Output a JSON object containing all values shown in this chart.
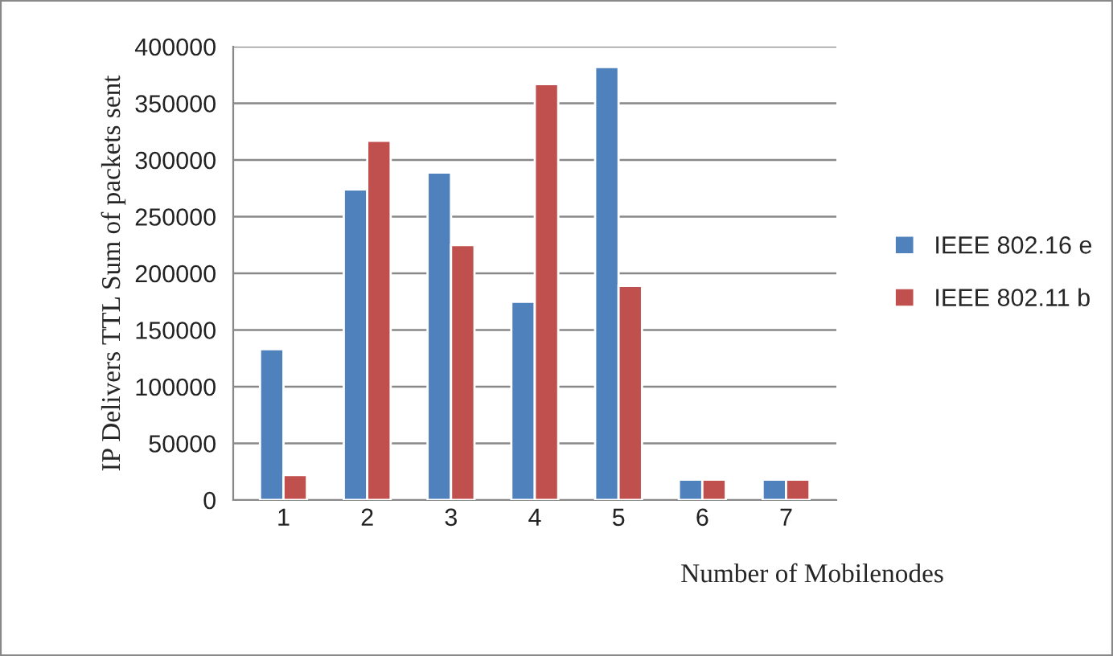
{
  "chart_data": {
    "type": "bar",
    "xlabel": "Number of Mobilenodes",
    "ylabel": "IP Delivers TTL Sum of packets sent",
    "categories": [
      "1",
      "2",
      "3",
      "4",
      "5",
      "6",
      "7"
    ],
    "series": [
      {
        "name": "IEEE 802.16 e",
        "color": "#4f81bd",
        "values": [
          133000,
          274000,
          289000,
          175000,
          382000,
          18000,
          18000
        ]
      },
      {
        "name": "IEEE 802.11 b",
        "color": "#c0504d",
        "values": [
          22000,
          317000,
          225000,
          367000,
          189000,
          18000,
          18000
        ]
      }
    ],
    "ylim": [
      0,
      400000
    ],
    "yticks": [
      0,
      50000,
      100000,
      150000,
      200000,
      250000,
      300000,
      350000,
      400000
    ],
    "grid": "y",
    "legend": "right"
  }
}
